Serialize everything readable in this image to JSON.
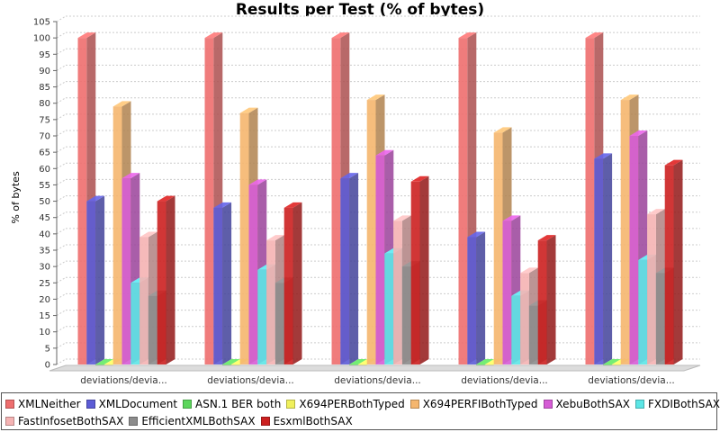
{
  "chart_data": {
    "type": "bar",
    "title": "Results per Test (% of bytes)",
    "ylabel": "% of bytes",
    "xlabel": "",
    "ylim": [
      0,
      105
    ],
    "ytick_step": 5,
    "grid": true,
    "legend_position": "bottom",
    "categories": [
      "deviations/devia...",
      "deviations/devia...",
      "deviations/devia...",
      "deviations/devia...",
      "deviations/devia..."
    ],
    "series": [
      {
        "name": "XMLNeither",
        "color": "#ee6e6e",
        "values": [
          100,
          100,
          100,
          100,
          100
        ]
      },
      {
        "name": "XMLDocument",
        "color": "#5c5cd6",
        "values": [
          50,
          48,
          57,
          39,
          63
        ]
      },
      {
        "name": "ASN.1 BER both",
        "color": "#5cd65c",
        "values": [
          0,
          0,
          0,
          0,
          0
        ]
      },
      {
        "name": "X694PERBothTyped",
        "color": "#f0f05c",
        "values": [
          0,
          0,
          0,
          0,
          0
        ]
      },
      {
        "name": "X694PERFIBothTyped",
        "color": "#f5b66e",
        "values": [
          79,
          77,
          81,
          71,
          81
        ]
      },
      {
        "name": "XebuBothSAX",
        "color": "#d65cd6",
        "values": [
          57,
          55,
          64,
          44,
          70
        ]
      },
      {
        "name": "FXDIBothSAX",
        "color": "#5ce6e6",
        "values": [
          25,
          29,
          34,
          21,
          32
        ]
      },
      {
        "name": "FastInfosetBothSAX",
        "color": "#f5b3b3",
        "values": [
          39,
          38,
          44,
          28,
          46
        ]
      },
      {
        "name": "EfficientXMLBothSAX",
        "color": "#8c8c8c",
        "values": [
          21,
          25,
          30,
          18,
          28
        ]
      },
      {
        "name": "EsxmlBothSAX",
        "color": "#cc2020",
        "values": [
          50,
          48,
          56,
          38,
          61
        ]
      }
    ]
  }
}
